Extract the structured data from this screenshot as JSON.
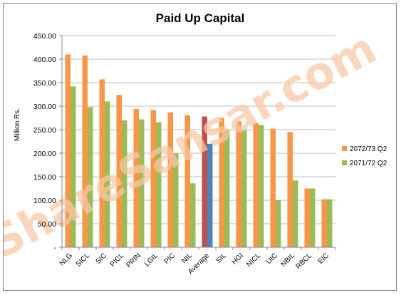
{
  "chart_data": {
    "type": "bar",
    "title": "Paid Up Capital",
    "xlabel": "",
    "ylabel": "Million Rs.",
    "ylim": [
      0,
      450
    ],
    "yticks": [
      "-",
      "50.00",
      "100.00",
      "150.00",
      "200.00",
      "250.00",
      "300.00",
      "350.00",
      "400.00",
      "450.00"
    ],
    "ytick_values": [
      0,
      50,
      100,
      150,
      200,
      250,
      300,
      350,
      400,
      450
    ],
    "grid": true,
    "legend": "right",
    "categories": [
      "NLG",
      "SICL",
      "SIC",
      "PICL",
      "PRIN",
      "LGIL",
      "PIC",
      "NIL",
      "Average",
      "SIL",
      "HGI",
      "NICL",
      "UIC",
      "NBIL",
      "RBCL",
      "EIC"
    ],
    "series": [
      {
        "name": "2072/73 Q2",
        "color": "#f79646",
        "values": [
          410,
          408,
          357,
          324,
          294,
          292,
          287,
          281,
          278,
          275,
          268,
          265,
          252,
          245,
          125,
          102
        ]
      },
      {
        "name": "2071/72 Q2",
        "color": "#9bbb59",
        "values": [
          342,
          298,
          310,
          270,
          272,
          266,
          200,
          136,
          220,
          250,
          250,
          260,
          100,
          142,
          125,
          102
        ]
      }
    ],
    "highlight": {
      "category": "Average",
      "colors": [
        "#c0504d",
        "#4f81bd"
      ]
    }
  },
  "watermark": "ShareSansar.com"
}
